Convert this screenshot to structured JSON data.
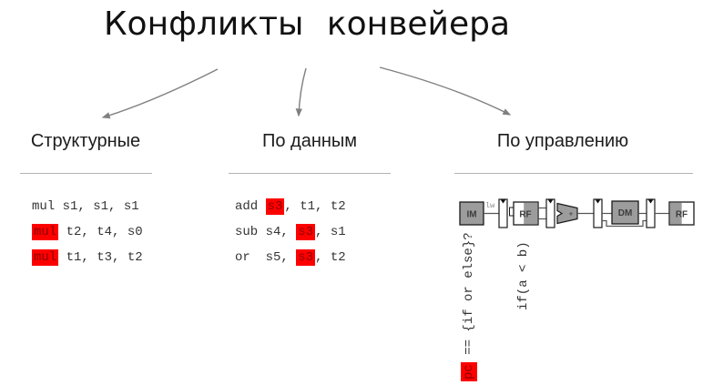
{
  "title": "Конфликты конвейера",
  "columns": {
    "structural": {
      "header": "Структурные",
      "code": [
        [
          {
            "t": "mul s1, s1, s1",
            "h": false
          }
        ],
        [
          {
            "t": "mul",
            "h": true
          },
          {
            "t": " t2, t4, s0",
            "h": false
          }
        ],
        [
          {
            "t": "mul",
            "h": true
          },
          {
            "t": " t1, t3, t2",
            "h": false
          }
        ]
      ]
    },
    "data": {
      "header": "По данным",
      "code": [
        [
          {
            "t": "add ",
            "h": false
          },
          {
            "t": "s3",
            "h": true
          },
          {
            "t": ", t1, t2",
            "h": false
          }
        ],
        [
          {
            "t": "sub s4, ",
            "h": false
          },
          {
            "t": "s3",
            "h": true
          },
          {
            "t": ", s1",
            "h": false
          }
        ],
        [
          {
            "t": "or  s5, ",
            "h": false
          },
          {
            "t": "s3",
            "h": true
          },
          {
            "t": ", t2",
            "h": false
          }
        ]
      ]
    },
    "control": {
      "header": "По управлению",
      "pipeline": {
        "im": "IM",
        "rf1": "RF",
        "alu": "+",
        "dm": "DM",
        "rf2": "RF",
        "instr": "lw"
      },
      "vertical_code": {
        "line1": [
          {
            "t": "pc",
            "h": true
          },
          {
            "t": " == {if or else}?",
            "h": false
          }
        ],
        "line2": [
          {
            "t": "if(a < b)",
            "h": false
          }
        ]
      }
    }
  },
  "colors": {
    "highlight_bg": "#ff0000",
    "highlight_text": "#8b0000",
    "arrow": "#808080",
    "box_gray": "#9c9c9c"
  }
}
